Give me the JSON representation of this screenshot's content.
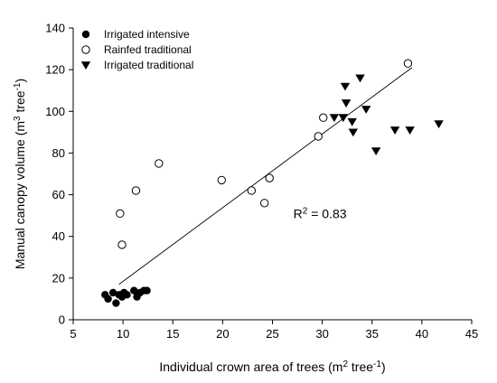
{
  "chart_data": {
    "type": "scatter",
    "xlabel": {
      "main": "Individual crown area of trees (m",
      "sup1": "2",
      "mid": " tree",
      "sup2": "-1",
      "end": ")"
    },
    "ylabel": {
      "main": "Manual canopy volume  (m",
      "sup1": "3",
      "mid": " tree",
      "sup2": "-1",
      "end": ")"
    },
    "xlim": [
      5,
      45
    ],
    "ylim": [
      0,
      140
    ],
    "xticks": [
      5,
      10,
      15,
      20,
      25,
      30,
      35,
      40,
      45
    ],
    "yticks": [
      0,
      20,
      40,
      60,
      80,
      100,
      120,
      140
    ],
    "grid": false,
    "legend_position": "top-left",
    "series": [
      {
        "name": "Irrigated intensive",
        "marker": "filled-circle",
        "points": [
          [
            8.2,
            12
          ],
          [
            8.5,
            10
          ],
          [
            9.0,
            13
          ],
          [
            9.3,
            8
          ],
          [
            9.6,
            12
          ],
          [
            9.9,
            11
          ],
          [
            10.1,
            13
          ],
          [
            10.4,
            12
          ],
          [
            11.1,
            14
          ],
          [
            11.4,
            11
          ],
          [
            11.7,
            13
          ],
          [
            12.1,
            14
          ],
          [
            12.4,
            14
          ]
        ]
      },
      {
        "name": "Rainfed traditional",
        "marker": "open-circle",
        "points": [
          [
            9.7,
            51
          ],
          [
            9.9,
            36
          ],
          [
            11.3,
            62
          ],
          [
            13.6,
            75
          ],
          [
            19.9,
            67
          ],
          [
            22.9,
            62
          ],
          [
            24.2,
            56
          ],
          [
            24.7,
            68
          ],
          [
            29.6,
            88
          ],
          [
            30.1,
            97
          ],
          [
            38.6,
            123
          ]
        ]
      },
      {
        "name": "Irrigated traditional",
        "marker": "filled-triangle-down",
        "points": [
          [
            31.2,
            97
          ],
          [
            32.1,
            97
          ],
          [
            32.3,
            112
          ],
          [
            32.4,
            104
          ],
          [
            33.0,
            95
          ],
          [
            33.1,
            90
          ],
          [
            33.8,
            116
          ],
          [
            34.4,
            101
          ],
          [
            35.4,
            81
          ],
          [
            37.3,
            91
          ],
          [
            38.8,
            91
          ],
          [
            41.7,
            94
          ]
        ]
      }
    ],
    "trendline": {
      "x": [
        9.6,
        39.0
      ],
      "y": [
        17,
        121
      ]
    },
    "annotation": {
      "prefix": "R",
      "sup": "2",
      "suffix": " = 0.83",
      "x": 27.1,
      "y": 51
    }
  }
}
